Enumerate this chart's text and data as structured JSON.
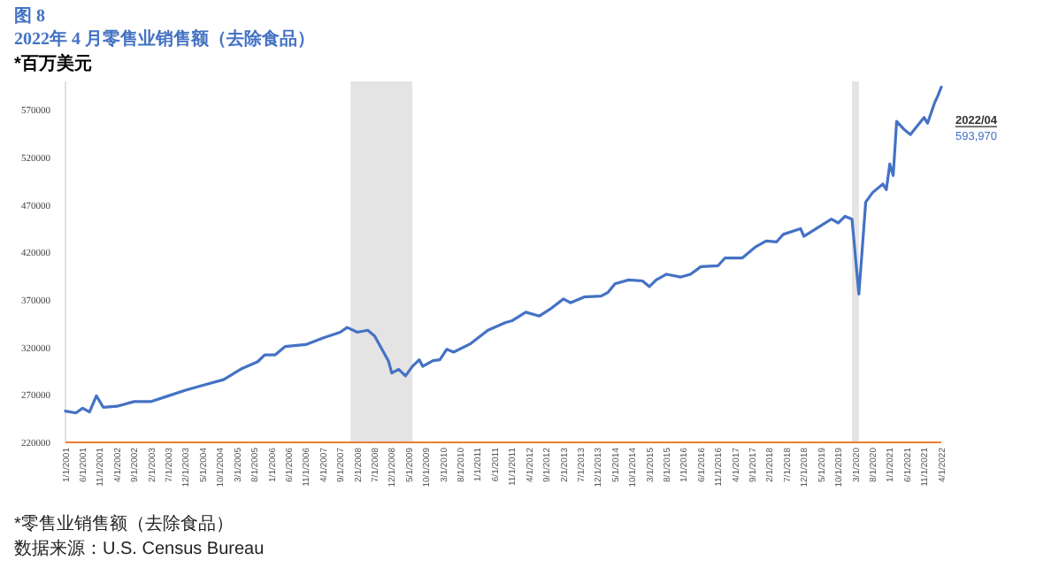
{
  "chart_data": {
    "type": "line",
    "title": "图 8",
    "subtitle": "2022年 4 月零售业销售额（去除食品）",
    "ylabel": "*百万美元",
    "x": [
      "2001-01",
      "2001-04",
      "2001-06",
      "2001-08",
      "2001-10",
      "2001-12",
      "2002-04",
      "2002-09",
      "2003-02",
      "2003-07",
      "2003-12",
      "2004-05",
      "2004-11",
      "2005-04",
      "2005-09",
      "2005-11",
      "2006-02",
      "2006-05",
      "2006-11",
      "2007-04",
      "2007-09",
      "2007-11",
      "2008-02",
      "2008-05",
      "2008-07",
      "2008-11",
      "2008-12",
      "2009-02",
      "2009-04",
      "2009-06",
      "2009-08",
      "2009-09",
      "2009-12",
      "2010-02",
      "2010-04",
      "2010-06",
      "2010-11",
      "2011-04",
      "2011-09",
      "2011-11",
      "2012-03",
      "2012-07",
      "2012-10",
      "2013-02",
      "2013-04",
      "2013-08",
      "2014-01",
      "2014-03",
      "2014-05",
      "2014-09",
      "2015-01",
      "2015-03",
      "2015-05",
      "2015-08",
      "2015-12",
      "2016-03",
      "2016-06",
      "2016-11",
      "2017-01",
      "2017-06",
      "2017-07",
      "2017-10",
      "2018-01",
      "2018-04",
      "2018-06",
      "2018-11",
      "2018-12",
      "2019-04",
      "2019-08",
      "2019-10",
      "2019-12",
      "2020-02",
      "2020-04",
      "2020-06",
      "2020-08",
      "2020-11",
      "2020-12",
      "2021-01",
      "2021-02",
      "2021-03",
      "2021-05",
      "2021-07",
      "2021-11",
      "2021-12",
      "2022-02",
      "2022-03",
      "2022-04"
    ],
    "series": [
      {
        "color": "#4472c4",
        "values": [
          253000,
          251000,
          256000,
          252000,
          269000,
          257000,
          258000,
          263000,
          263000,
          269000,
          275000,
          280000,
          286000,
          297000,
          305000,
          312000,
          312000,
          321000,
          323000,
          330000,
          336000,
          341000,
          336000,
          338000,
          332000,
          306000,
          293000,
          297000,
          290000,
          300000,
          307000,
          300000,
          306000,
          307000,
          318000,
          315000,
          324000,
          338000,
          346000,
          348000,
          357000,
          353000,
          360000,
          371000,
          367000,
          373000,
          374000,
          378000,
          387000,
          391000,
          390000,
          384000,
          391000,
          397000,
          394000,
          397000,
          405000,
          406000,
          414000,
          414000,
          417000,
          426000,
          432000,
          431000,
          439000,
          445000,
          437000,
          446000,
          455000,
          451000,
          458000,
          455000,
          376000,
          473000,
          483000,
          492000,
          486000,
          513000,
          501000,
          558000,
          550000,
          544000,
          562000,
          556000,
          577000,
          585000,
          593970
        ]
      }
    ],
    "xlim": [
      "2001-01",
      "2022-04"
    ],
    "ylim": [
      220000,
      600000
    ],
    "yticks": [
      220000,
      270000,
      320000,
      370000,
      420000,
      470000,
      520000,
      570000
    ],
    "xticks": [
      {
        "value": "2001-01",
        "label": "1/1/2001"
      },
      {
        "value": "2001-06",
        "label": "6/1/2001"
      },
      {
        "value": "2001-11",
        "label": "11/1/2001"
      },
      {
        "value": "2002-04",
        "label": "4/1/2002"
      },
      {
        "value": "2002-09",
        "label": "9/1/2002"
      },
      {
        "value": "2003-02",
        "label": "2/1/2003"
      },
      {
        "value": "2003-07",
        "label": "7/1/2003"
      },
      {
        "value": "2003-12",
        "label": "12/1/2003"
      },
      {
        "value": "2004-05",
        "label": "5/1/2004"
      },
      {
        "value": "2004-10",
        "label": "10/1/2004"
      },
      {
        "value": "2005-03",
        "label": "3/1/2005"
      },
      {
        "value": "2005-08",
        "label": "8/1/2005"
      },
      {
        "value": "2006-01",
        "label": "1/1/2006"
      },
      {
        "value": "2006-06",
        "label": "6/1/2006"
      },
      {
        "value": "2006-11",
        "label": "11/1/2006"
      },
      {
        "value": "2007-04",
        "label": "4/1/2007"
      },
      {
        "value": "2007-09",
        "label": "9/1/2007"
      },
      {
        "value": "2008-02",
        "label": "2/1/2008"
      },
      {
        "value": "2008-07",
        "label": "7/1/2008"
      },
      {
        "value": "2008-12",
        "label": "12/1/2008"
      },
      {
        "value": "2009-05",
        "label": "5/1/2009"
      },
      {
        "value": "2009-10",
        "label": "10/1/2009"
      },
      {
        "value": "2010-03",
        "label": "3/1/2010"
      },
      {
        "value": "2010-08",
        "label": "8/1/2010"
      },
      {
        "value": "2011-01",
        "label": "1/1/2011"
      },
      {
        "value": "2011-06",
        "label": "6/1/2011"
      },
      {
        "value": "2011-11",
        "label": "11/1/2011"
      },
      {
        "value": "2012-04",
        "label": "4/1/2012"
      },
      {
        "value": "2012-09",
        "label": "9/1/2012"
      },
      {
        "value": "2013-02",
        "label": "2/1/2013"
      },
      {
        "value": "2013-07",
        "label": "7/1/2013"
      },
      {
        "value": "2013-12",
        "label": "12/1/2013"
      },
      {
        "value": "2014-05",
        "label": "5/1/2014"
      },
      {
        "value": "2014-10",
        "label": "10/1/2014"
      },
      {
        "value": "2015-03",
        "label": "3/1/2015"
      },
      {
        "value": "2015-08",
        "label": "8/1/2015"
      },
      {
        "value": "2016-01",
        "label": "1/1/2016"
      },
      {
        "value": "2016-06",
        "label": "6/1/2016"
      },
      {
        "value": "2016-11",
        "label": "11/1/2016"
      },
      {
        "value": "2017-04",
        "label": "4/1/2017"
      },
      {
        "value": "2017-09",
        "label": "9/1/2017"
      },
      {
        "value": "2018-02",
        "label": "2/1/2018"
      },
      {
        "value": "2018-07",
        "label": "7/1/2018"
      },
      {
        "value": "2018-12",
        "label": "12/1/2018"
      },
      {
        "value": "2019-05",
        "label": "5/1/2019"
      },
      {
        "value": "2019-10",
        "label": "10/1/2019"
      },
      {
        "value": "2020-03",
        "label": "3/1/2020"
      },
      {
        "value": "2020-08",
        "label": "8/1/2020"
      },
      {
        "value": "2021-01",
        "label": "1/1/2021"
      },
      {
        "value": "2021-06",
        "label": "6/1/2021"
      },
      {
        "value": "2021-11",
        "label": "11/1/2021"
      },
      {
        "value": "2022-04",
        "label": "4/1/2022"
      }
    ],
    "bands": [
      {
        "axis": "x",
        "from": "2007-12",
        "to": "2009-06",
        "color": "#e4e4e4"
      },
      {
        "axis": "x",
        "from": "2020-02",
        "to": "2020-04",
        "color": "#e4e4e4"
      }
    ],
    "annotations": [
      {
        "text": "2022/04",
        "x": "2022-04",
        "y": 593970
      },
      "593,970",
      "*零售业销售额（去除食品）",
      "数据来源：U.S. Census Bureau"
    ]
  }
}
